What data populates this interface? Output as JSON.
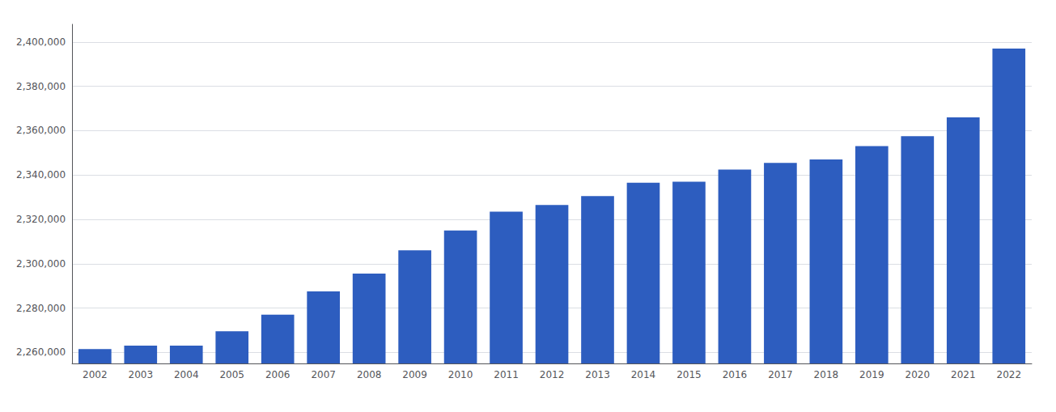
{
  "chart_data": {
    "type": "bar",
    "categories": [
      "2002",
      "2003",
      "2004",
      "2005",
      "2006",
      "2007",
      "2008",
      "2009",
      "2010",
      "2011",
      "2012",
      "2013",
      "2014",
      "2015",
      "2016",
      "2017",
      "2018",
      "2019",
      "2020",
      "2021",
      "2022"
    ],
    "values": [
      2261500,
      2263000,
      2263000,
      2269500,
      2277000,
      2287500,
      2295500,
      2306000,
      2315000,
      2323500,
      2326500,
      2330500,
      2336500,
      2337000,
      2342500,
      2345500,
      2347000,
      2353000,
      2357500,
      2366000,
      2397000
    ],
    "color": "#2d5dbf",
    "ylim": [
      2255000,
      2408000
    ],
    "yticks": [
      {
        "value": 2260000,
        "label": "2,260,000"
      },
      {
        "value": 2280000,
        "label": "2,280,000"
      },
      {
        "value": 2300000,
        "label": "2,300,000"
      },
      {
        "value": 2320000,
        "label": "2,320,000"
      },
      {
        "value": 2340000,
        "label": "2,340,000"
      },
      {
        "value": 2360000,
        "label": "2,360,000"
      },
      {
        "value": 2380000,
        "label": "2,380,000"
      },
      {
        "value": 2400000,
        "label": "2,400,000"
      }
    ],
    "grid": true
  }
}
